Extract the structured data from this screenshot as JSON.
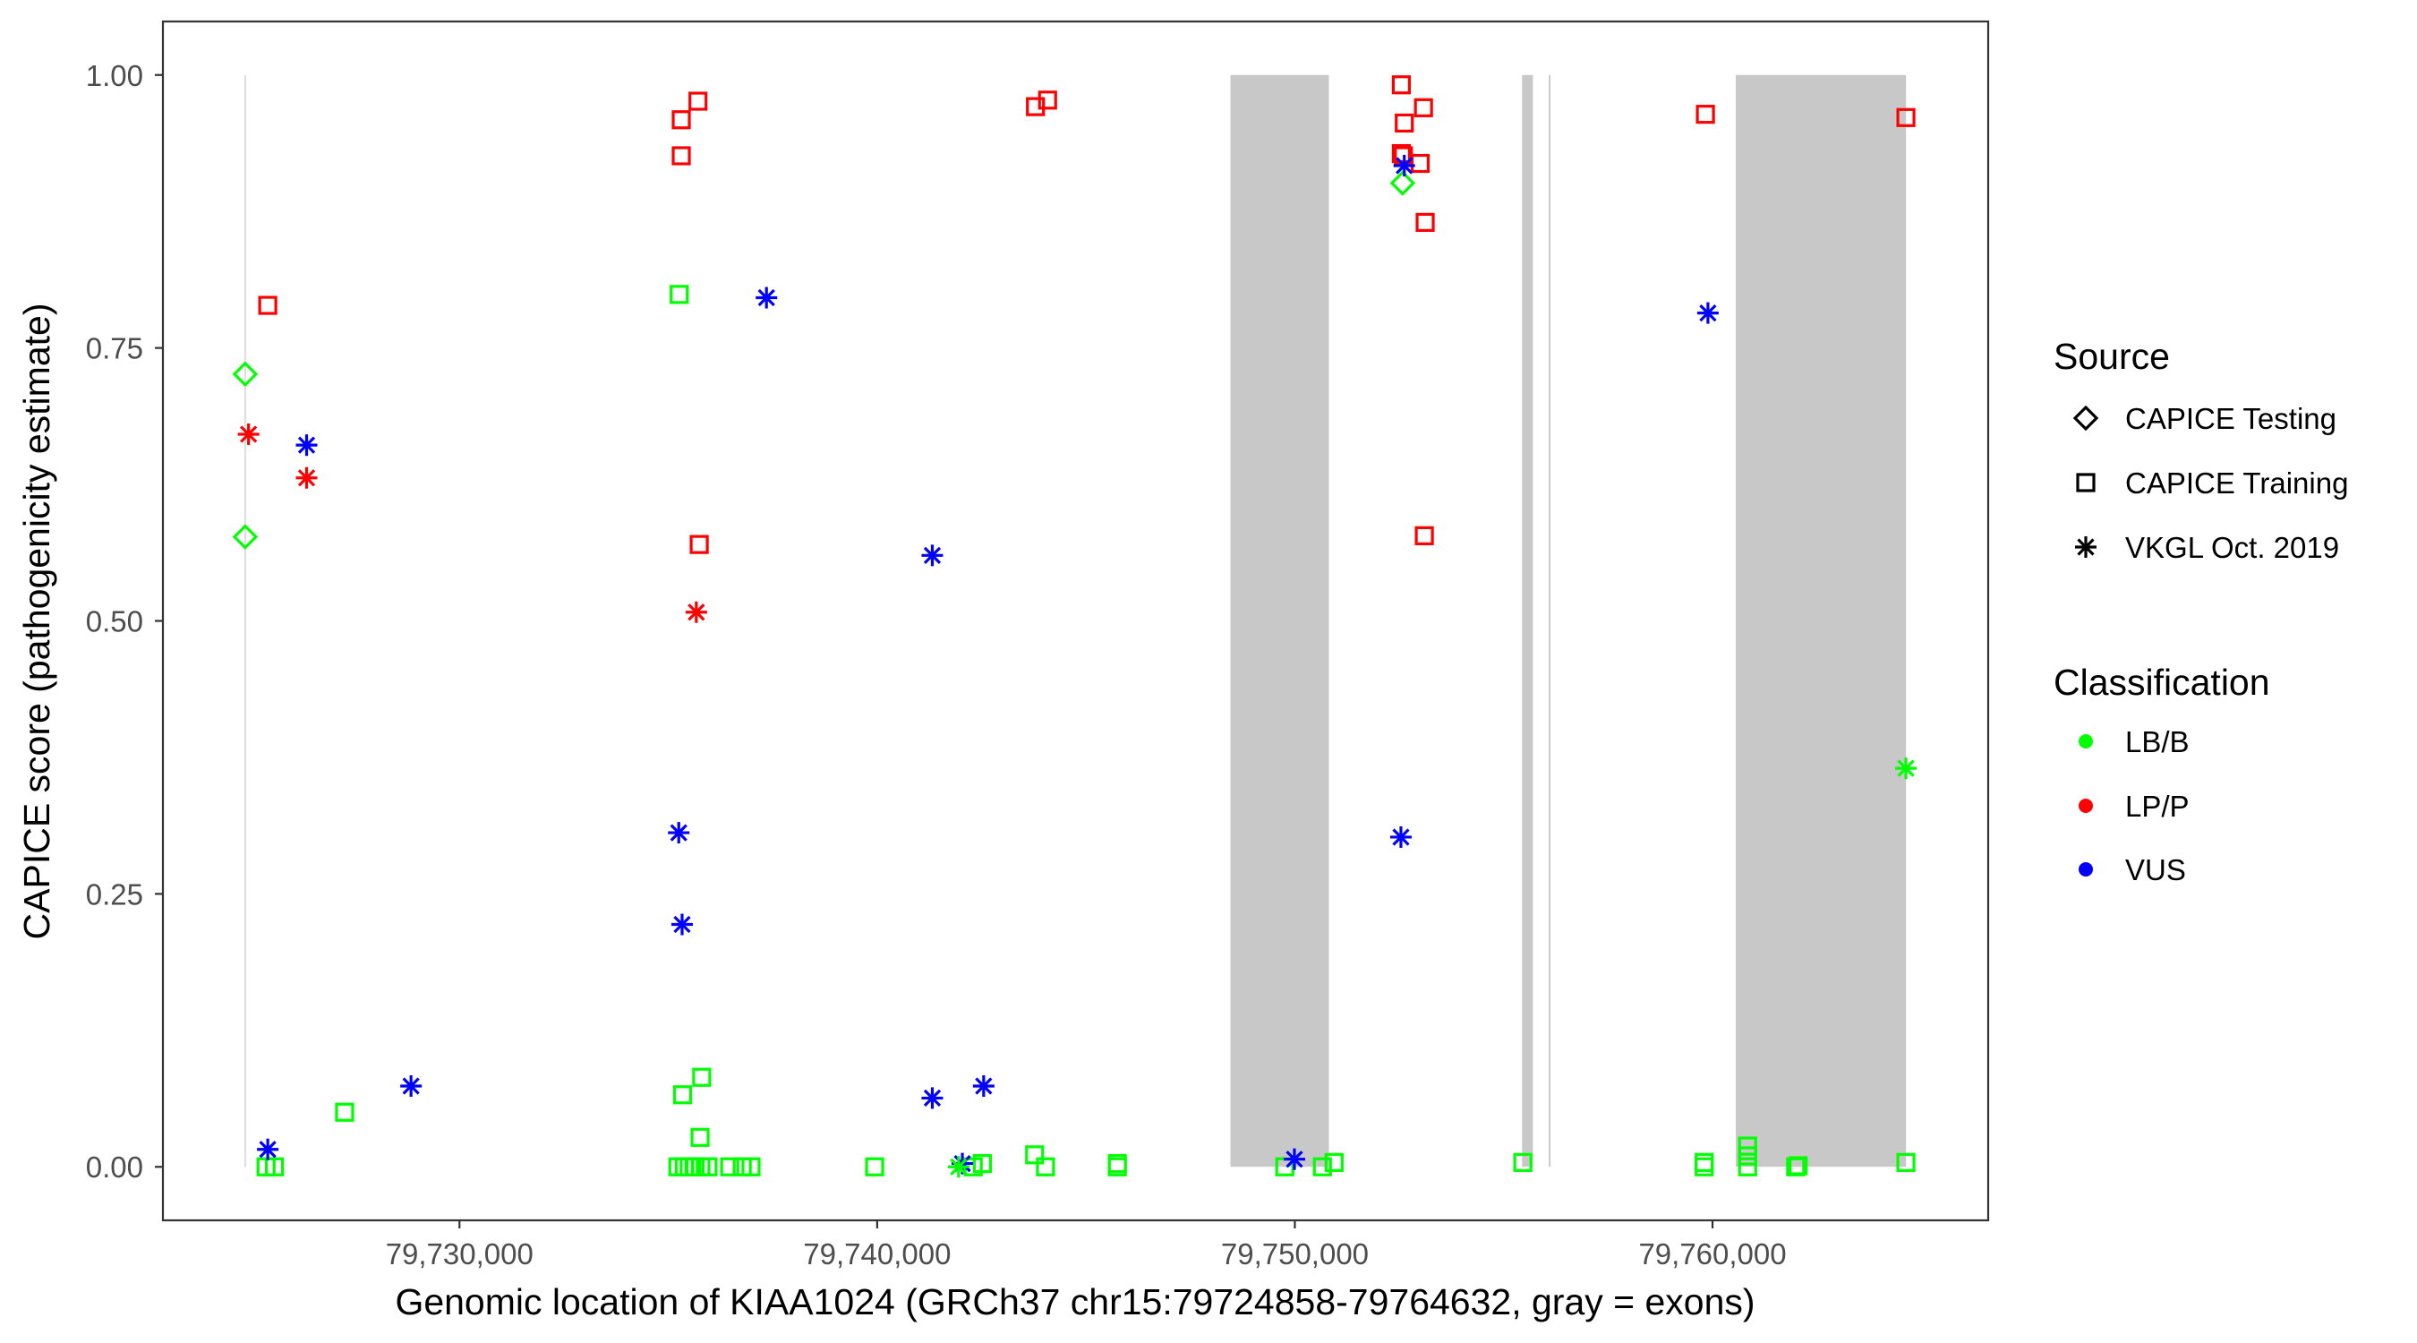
{
  "chart_data": {
    "type": "scatter",
    "title": "",
    "xlabel": "Genomic location of KIAA1024 (GRCh37 chr15:79724858-79764632, gray = exons)",
    "ylabel": "CAPICE score (pathogenicity estimate)",
    "xlim": [
      79722900,
      79766600
    ],
    "ylim": [
      -0.049,
      1.049
    ],
    "grid": false,
    "x_ticks": [
      {
        "value": 79730000,
        "label": "79,730,000"
      },
      {
        "value": 79740000,
        "label": "79,740,000"
      },
      {
        "value": 79750000,
        "label": "79,750,000"
      },
      {
        "value": 79760000,
        "label": "79,760,000"
      }
    ],
    "y_ticks": [
      {
        "value": 0,
        "label": "0.00"
      },
      {
        "value": 0.25,
        "label": "0.25"
      },
      {
        "value": 0.5,
        "label": "0.50"
      },
      {
        "value": 0.75,
        "label": "0.75"
      },
      {
        "value": 1,
        "label": "1.00"
      }
    ],
    "exons": [
      {
        "start": 79724858,
        "end": 79724872,
        "ymin": 0,
        "ymax": 1
      },
      {
        "start": 79748458,
        "end": 79750814,
        "ymin": 0,
        "ymax": 1
      },
      {
        "start": 79755440,
        "end": 79755700,
        "ymin": 0,
        "ymax": 1
      },
      {
        "start": 79756080,
        "end": 79756120,
        "ymin": 0,
        "ymax": 1
      },
      {
        "start": 79760557,
        "end": 79764632,
        "ymin": 0,
        "ymax": 1
      }
    ],
    "exon_color": "#c8c8c8",
    "legend": {
      "placement": "right",
      "source": {
        "title": "Source",
        "items": [
          {
            "key": "testing",
            "label": "CAPICE Testing",
            "shape": "diamond"
          },
          {
            "key": "training",
            "label": "CAPICE Training",
            "shape": "square"
          },
          {
            "key": "vkgl",
            "label": "VKGL Oct. 2019",
            "shape": "star"
          }
        ]
      },
      "classification": {
        "title": "Classification",
        "items": [
          {
            "key": "LB/B",
            "label": "LB/B",
            "color": "#00ff00"
          },
          {
            "key": "LP/P",
            "label": "LP/P",
            "color": "#ff0000"
          },
          {
            "key": "VUS",
            "label": "VUS",
            "color": "#0000ff"
          }
        ]
      }
    },
    "points": [
      {
        "x": 79724870,
        "y": 0.726,
        "source": "testing",
        "class": "LB/B"
      },
      {
        "x": 79724870,
        "y": 0.577,
        "source": "testing",
        "class": "LB/B"
      },
      {
        "x": 79752580,
        "y": 0.901,
        "source": "testing",
        "class": "LB/B"
      },
      {
        "x": 79725410,
        "y": 0.789,
        "source": "training",
        "class": "LP/P"
      },
      {
        "x": 79735310,
        "y": 0.959,
        "source": "training",
        "class": "LP/P"
      },
      {
        "x": 79735710,
        "y": 0.976,
        "source": "training",
        "class": "LP/P"
      },
      {
        "x": 79735310,
        "y": 0.926,
        "source": "training",
        "class": "LP/P"
      },
      {
        "x": 79735740,
        "y": 0.57,
        "source": "training",
        "class": "LP/P"
      },
      {
        "x": 79743790,
        "y": 0.971,
        "source": "training",
        "class": "LP/P"
      },
      {
        "x": 79744080,
        "y": 0.977,
        "source": "training",
        "class": "LP/P"
      },
      {
        "x": 79752550,
        "y": 0.991,
        "source": "training",
        "class": "LP/P"
      },
      {
        "x": 79753080,
        "y": 0.97,
        "source": "training",
        "class": "LP/P"
      },
      {
        "x": 79752620,
        "y": 0.956,
        "source": "training",
        "class": "LP/P"
      },
      {
        "x": 79752550,
        "y": 0.928,
        "source": "training",
        "class": "LP/P"
      },
      {
        "x": 79752600,
        "y": 0.926,
        "source": "training",
        "class": "LP/P"
      },
      {
        "x": 79753000,
        "y": 0.919,
        "source": "training",
        "class": "LP/P"
      },
      {
        "x": 79753120,
        "y": 0.865,
        "source": "training",
        "class": "LP/P"
      },
      {
        "x": 79753100,
        "y": 0.578,
        "source": "training",
        "class": "LP/P"
      },
      {
        "x": 79759830,
        "y": 0.964,
        "source": "training",
        "class": "LP/P"
      },
      {
        "x": 79764630,
        "y": 0.961,
        "source": "training",
        "class": "LP/P"
      },
      {
        "x": 79725370,
        "y": 0,
        "source": "training",
        "class": "LB/B"
      },
      {
        "x": 79725570,
        "y": 0,
        "source": "training",
        "class": "LB/B"
      },
      {
        "x": 79727250,
        "y": 0.05,
        "source": "training",
        "class": "LB/B"
      },
      {
        "x": 79735260,
        "y": 0.799,
        "source": "training",
        "class": "LB/B"
      },
      {
        "x": 79735800,
        "y": 0.082,
        "source": "training",
        "class": "LB/B"
      },
      {
        "x": 79735340,
        "y": 0.066,
        "source": "training",
        "class": "LB/B"
      },
      {
        "x": 79735760,
        "y": 0.027,
        "source": "training",
        "class": "LB/B"
      },
      {
        "x": 79735230,
        "y": 0,
        "source": "training",
        "class": "LB/B"
      },
      {
        "x": 79735380,
        "y": 0,
        "source": "training",
        "class": "LB/B"
      },
      {
        "x": 79735500,
        "y": 0,
        "source": "training",
        "class": "LB/B"
      },
      {
        "x": 79735640,
        "y": 0,
        "source": "training",
        "class": "LB/B"
      },
      {
        "x": 79735780,
        "y": 0,
        "source": "training",
        "class": "LB/B"
      },
      {
        "x": 79735950,
        "y": 0,
        "source": "training",
        "class": "LB/B"
      },
      {
        "x": 79736470,
        "y": 0,
        "source": "training",
        "class": "LB/B"
      },
      {
        "x": 79736770,
        "y": 0,
        "source": "training",
        "class": "LB/B"
      },
      {
        "x": 79736980,
        "y": 0,
        "source": "training",
        "class": "LB/B"
      },
      {
        "x": 79739940,
        "y": 0,
        "source": "training",
        "class": "LB/B"
      },
      {
        "x": 79742300,
        "y": 0,
        "source": "training",
        "class": "LB/B"
      },
      {
        "x": 79742520,
        "y": 0.003,
        "source": "training",
        "class": "LB/B"
      },
      {
        "x": 79743770,
        "y": 0.011,
        "source": "training",
        "class": "LB/B"
      },
      {
        "x": 79744030,
        "y": 0,
        "source": "training",
        "class": "LB/B"
      },
      {
        "x": 79745750,
        "y": 0.003,
        "source": "training",
        "class": "LB/B"
      },
      {
        "x": 79745750,
        "y": 0,
        "source": "training",
        "class": "LB/B"
      },
      {
        "x": 79749760,
        "y": 0,
        "source": "training",
        "class": "LB/B"
      },
      {
        "x": 79750660,
        "y": 0,
        "source": "training",
        "class": "LB/B"
      },
      {
        "x": 79750940,
        "y": 0.004,
        "source": "training",
        "class": "LB/B"
      },
      {
        "x": 79755460,
        "y": 0.004,
        "source": "training",
        "class": "LB/B"
      },
      {
        "x": 79759800,
        "y": 0.004,
        "source": "training",
        "class": "LB/B"
      },
      {
        "x": 79759800,
        "y": 0,
        "source": "training",
        "class": "LB/B"
      },
      {
        "x": 79760840,
        "y": 0.019,
        "source": "training",
        "class": "LB/B"
      },
      {
        "x": 79760840,
        "y": 0.01,
        "source": "training",
        "class": "LB/B"
      },
      {
        "x": 79760840,
        "y": 0,
        "source": "training",
        "class": "LB/B"
      },
      {
        "x": 79761990,
        "y": 0,
        "source": "training",
        "class": "LB/B"
      },
      {
        "x": 79762050,
        "y": 0.001,
        "source": "training",
        "class": "LB/B"
      },
      {
        "x": 79764630,
        "y": 0.004,
        "source": "training",
        "class": "LB/B"
      },
      {
        "x": 79724950,
        "y": 0.671,
        "source": "vkgl",
        "class": "LP/P"
      },
      {
        "x": 79726340,
        "y": 0.631,
        "source": "vkgl",
        "class": "LP/P"
      },
      {
        "x": 79735670,
        "y": 0.508,
        "source": "vkgl",
        "class": "LP/P"
      },
      {
        "x": 79725410,
        "y": 0.016,
        "source": "vkgl",
        "class": "VUS"
      },
      {
        "x": 79726340,
        "y": 0.661,
        "source": "vkgl",
        "class": "VUS"
      },
      {
        "x": 79728840,
        "y": 0.074,
        "source": "vkgl",
        "class": "VUS"
      },
      {
        "x": 79735250,
        "y": 0.306,
        "source": "vkgl",
        "class": "VUS"
      },
      {
        "x": 79735330,
        "y": 0.222,
        "source": "vkgl",
        "class": "VUS"
      },
      {
        "x": 79737350,
        "y": 0.796,
        "source": "vkgl",
        "class": "VUS"
      },
      {
        "x": 79741320,
        "y": 0.56,
        "source": "vkgl",
        "class": "VUS"
      },
      {
        "x": 79741320,
        "y": 0.063,
        "source": "vkgl",
        "class": "VUS"
      },
      {
        "x": 79742550,
        "y": 0.074,
        "source": "vkgl",
        "class": "VUS"
      },
      {
        "x": 79742040,
        "y": 0.003,
        "source": "vkgl",
        "class": "VUS"
      },
      {
        "x": 79749990,
        "y": 0.007,
        "source": "vkgl",
        "class": "VUS"
      },
      {
        "x": 79752620,
        "y": 0.917,
        "source": "vkgl",
        "class": "VUS"
      },
      {
        "x": 79752540,
        "y": 0.302,
        "source": "vkgl",
        "class": "VUS"
      },
      {
        "x": 79759890,
        "y": 0.782,
        "source": "vkgl",
        "class": "VUS"
      },
      {
        "x": 79741950,
        "y": 0,
        "source": "vkgl",
        "class": "LB/B"
      },
      {
        "x": 79764630,
        "y": 0.365,
        "source": "vkgl",
        "class": "LB/B"
      }
    ]
  }
}
